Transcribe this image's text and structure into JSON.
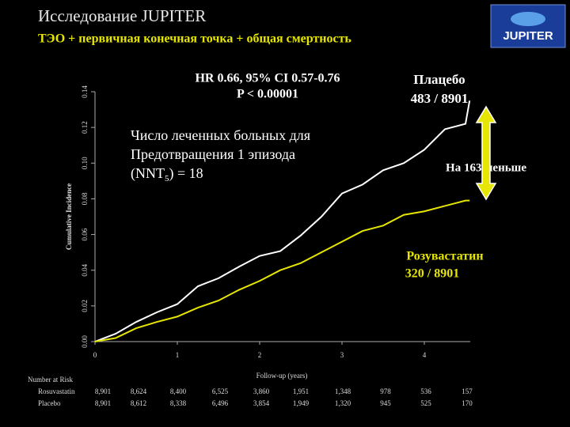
{
  "chart_data": {
    "type": "line",
    "title": "Исследование JUPITER",
    "subtitle": "ТЭО + первичная конечная точка + общая смертность",
    "logo": "JUPITER",
    "y_label": "Cumulative Incidence",
    "x_label": "Follow-up (years)",
    "x": [
      0,
      0.25,
      0.5,
      0.75,
      1,
      1.25,
      1.5,
      1.75,
      2,
      2.25,
      2.5,
      2.75,
      3,
      3.25,
      3.5,
      3.75,
      4,
      4.25,
      4.5,
      4.55
    ],
    "xlim": [
      0,
      4.5
    ],
    "xticks": [
      0,
      1,
      2,
      3,
      4
    ],
    "ylim": [
      0,
      0.14
    ],
    "yticks": [
      {
        "value": 0,
        "label": "0.00"
      },
      {
        "value": 0.02,
        "label": "0.02"
      },
      {
        "value": 0.04,
        "label": "0.04"
      },
      {
        "value": 0.06,
        "label": "0.06"
      },
      {
        "value": 0.08,
        "label": "0.08"
      },
      {
        "value": 0.1,
        "label": "0.10"
      },
      {
        "value": 0.12,
        "label": "0.12"
      },
      {
        "value": 0.14,
        "label": "0.14"
      }
    ],
    "series": [
      {
        "name": "Плацебо",
        "count_label": "483 / 8901",
        "color": "#ffffff",
        "values": [
          0,
          0.0044,
          0.011,
          0.0164,
          0.021,
          0.031,
          0.0355,
          0.042,
          0.048,
          0.0507,
          0.0595,
          0.07,
          0.083,
          0.088,
          0.096,
          0.1,
          0.1075,
          0.119,
          0.122,
          0.135
        ]
      },
      {
        "name": "Розувастатин",
        "count_label": "320 / 8901",
        "color": "#e6e600",
        "values": [
          0,
          0.002,
          0.0075,
          0.011,
          0.014,
          0.019,
          0.023,
          0.029,
          0.034,
          0.04,
          0.044,
          0.05,
          0.056,
          0.062,
          0.065,
          0.071,
          0.073,
          0.076,
          0.079,
          0.079
        ]
      }
    ],
    "annotations": {
      "hr": [
        "HR 0.66, 95% CI 0.57-0.76",
        "P < 0.00001"
      ],
      "nnt": [
        "Число леченных больных для",
        "Предотвращения 1 эпизода"
      ],
      "nnt_last": {
        "pre": "(NNT",
        "sub": "5",
        "post": ") = 18"
      },
      "difference": "На 163 меньше"
    },
    "risk_table": {
      "title": "Number at Risk",
      "rows": [
        {
          "label": "Rosuvastatin",
          "values": [
            "8,901",
            "8,624",
            "8,400",
            "6,525",
            "3,860",
            "1,951",
            "1,348",
            "978",
            "536",
            "157"
          ]
        },
        {
          "label": "Placebo",
          "values": [
            "8,901",
            "8,612",
            "8,338",
            "6,496",
            "3,854",
            "1,949",
            "1,320",
            "945",
            "525",
            "170"
          ]
        }
      ]
    }
  }
}
